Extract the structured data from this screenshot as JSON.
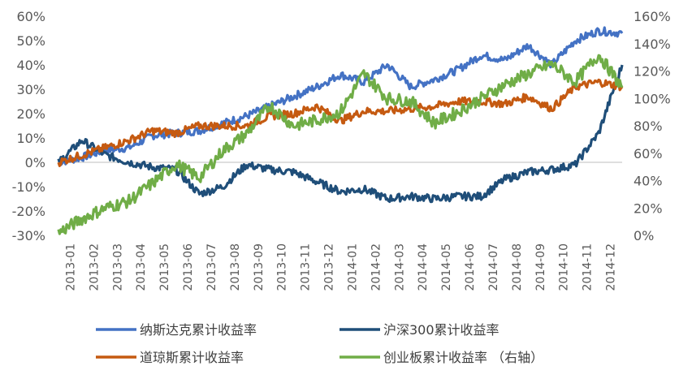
{
  "chart_data": {
    "type": "line",
    "title": "",
    "categories": [
      "2013-01",
      "2013-02",
      "2013-03",
      "2013-04",
      "2013-05",
      "2013-06",
      "2013-07",
      "2013-08",
      "2013-09",
      "2013-10",
      "2013-11",
      "2013-12",
      "2014-01",
      "2014-02",
      "2014-03",
      "2014-04",
      "2014-05",
      "2014-06",
      "2014-07",
      "2014-08",
      "2014-09",
      "2014-10",
      "2014-11",
      "2014-12"
    ],
    "x_end": "2015-01",
    "y_left": {
      "min": -30,
      "max": 60,
      "step": 10,
      "unit": "%",
      "ticks": [
        "60%",
        "50%",
        "40%",
        "30%",
        "20%",
        "10%",
        "0%",
        "-10%",
        "-20%",
        "-30%"
      ]
    },
    "y_right": {
      "min": 0,
      "max": 160,
      "step": 20,
      "unit": "%",
      "ticks": [
        "160%",
        "140%",
        "120%",
        "100%",
        "80%",
        "60%",
        "40%",
        "20%",
        "0%"
      ]
    },
    "grid": false,
    "legend_position": "bottom",
    "series": [
      {
        "name": "纳斯达克累计收益率",
        "axis": "left",
        "color": "#4472C4",
        "x": [
          "2013-01",
          "2013-02",
          "2013-03",
          "2013-04",
          "2013-05",
          "2013-06",
          "2013-07",
          "2013-08",
          "2013-09",
          "2013-10",
          "2013-11",
          "2013-12",
          "2014-01",
          "2014-02",
          "2014-03",
          "2014-04",
          "2014-05",
          "2014-06",
          "2014-07",
          "2014-08",
          "2014-09",
          "2014-10",
          "2014-11",
          "2014-12",
          "2015-01"
        ],
        "values": [
          0,
          2,
          5,
          6,
          11,
          12,
          13,
          16,
          19,
          23,
          27,
          31,
          36,
          33,
          40,
          31,
          34,
          38,
          44,
          42,
          48,
          40,
          50,
          54,
          53
        ]
      },
      {
        "name": "沪深300累计收益率",
        "axis": "left",
        "color": "#1F4E79",
        "x": [
          "2013-01",
          "2013-02",
          "2013-03",
          "2013-04",
          "2013-05",
          "2013-06",
          "2013-07",
          "2013-08",
          "2013-09",
          "2013-10",
          "2013-11",
          "2013-12",
          "2014-01",
          "2014-02",
          "2014-03",
          "2014-04",
          "2014-05",
          "2014-06",
          "2014-07",
          "2014-08",
          "2014-09",
          "2014-10",
          "2014-11",
          "2014-12",
          "2015-01"
        ],
        "values": [
          0,
          9,
          3,
          0,
          -2,
          -3,
          -13,
          -10,
          -1,
          -3,
          -4,
          -8,
          -12,
          -11,
          -15,
          -14,
          -15,
          -14,
          -14,
          -7,
          -4,
          -3,
          -1,
          12,
          40
        ]
      },
      {
        "name": "道琼斯累计收益率",
        "axis": "left",
        "color": "#C55A11",
        "x": [
          "2013-01",
          "2013-02",
          "2013-03",
          "2013-04",
          "2013-05",
          "2013-06",
          "2013-07",
          "2013-08",
          "2013-09",
          "2013-10",
          "2013-11",
          "2013-12",
          "2014-01",
          "2014-02",
          "2014-03",
          "2014-04",
          "2014-05",
          "2014-06",
          "2014-07",
          "2014-08",
          "2014-09",
          "2014-10",
          "2014-11",
          "2014-12",
          "2015-01"
        ],
        "values": [
          0,
          3,
          6,
          9,
          13,
          12,
          15,
          15,
          15,
          19,
          20,
          23,
          17,
          21,
          21,
          22,
          23,
          25,
          25,
          24,
          27,
          22,
          31,
          33,
          31
        ]
      },
      {
        "name": "创业板累计收益率 （右轴）",
        "axis": "right",
        "color": "#70AD47",
        "x": [
          "2013-01",
          "2013-02",
          "2013-03",
          "2013-04",
          "2013-05",
          "2013-06",
          "2013-07",
          "2013-08",
          "2013-09",
          "2013-10",
          "2013-11",
          "2013-12",
          "2014-01",
          "2014-02",
          "2014-03",
          "2014-04",
          "2014-05",
          "2014-06",
          "2014-07",
          "2014-08",
          "2014-09",
          "2014-10",
          "2014-11",
          "2014-12",
          "2015-01"
        ],
        "values": [
          2,
          12,
          20,
          25,
          38,
          52,
          42,
          62,
          74,
          95,
          80,
          84,
          90,
          118,
          100,
          98,
          82,
          90,
          100,
          110,
          118,
          125,
          112,
          132,
          108
        ]
      }
    ]
  }
}
